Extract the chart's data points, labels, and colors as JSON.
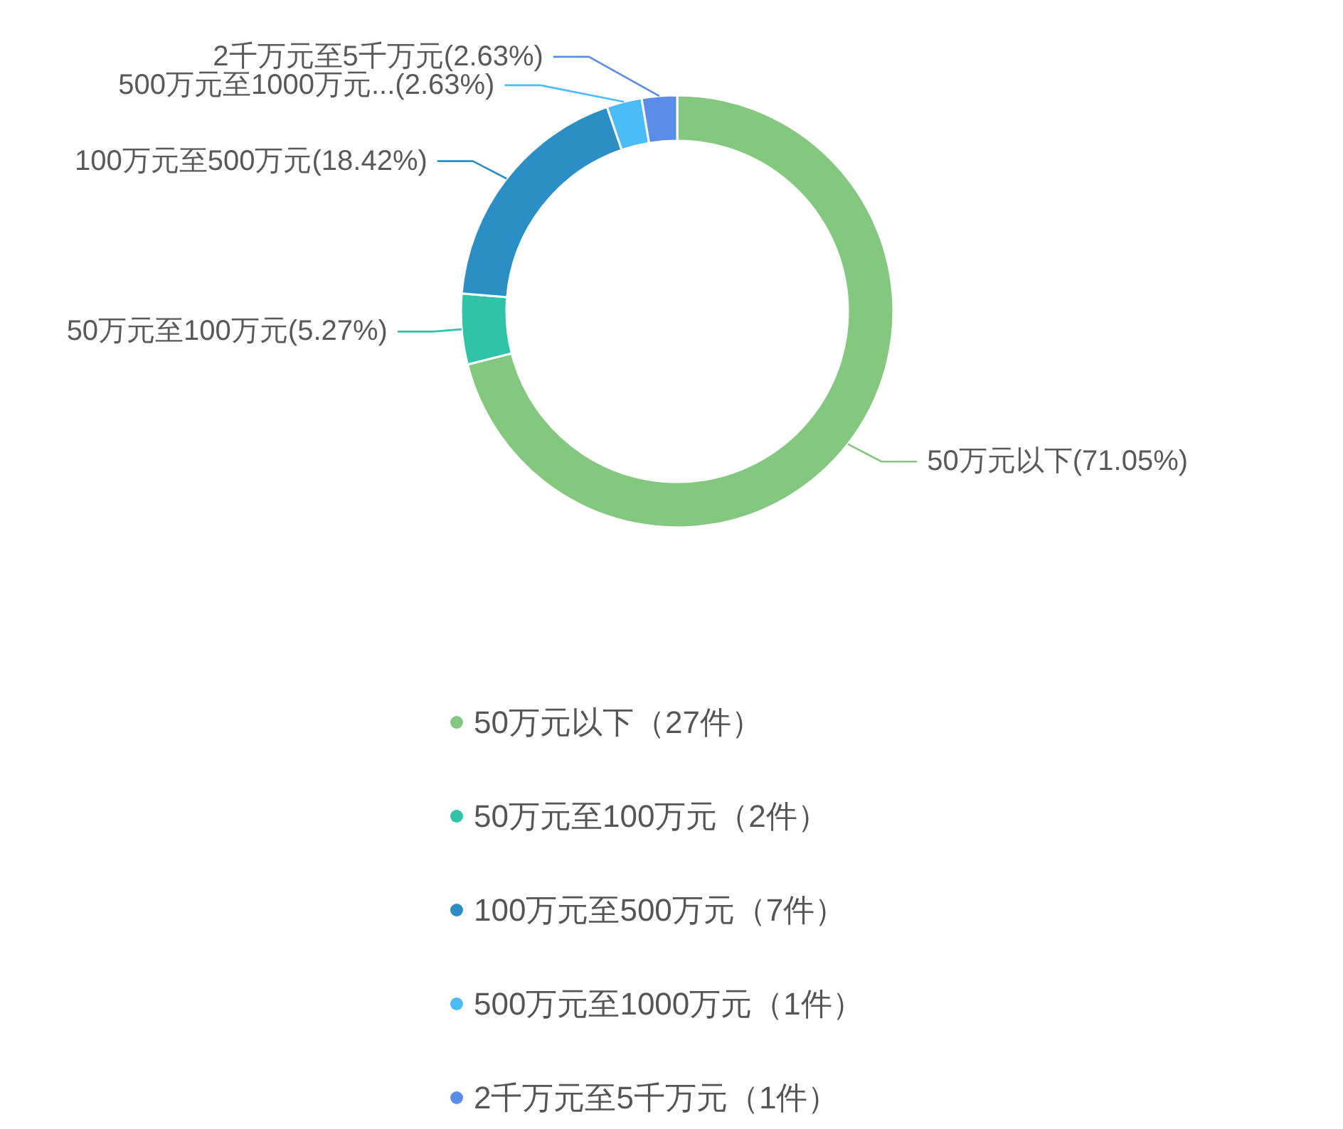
{
  "chart_data": {
    "type": "donut",
    "categories": [
      "50万元以下（27件）",
      "50万元至100万元（2件）",
      "100万元至500万元（7件）",
      "500万元至1000万元（1件）",
      "2千万元至5千万元（1件）"
    ],
    "values": [
      71.05,
      5.27,
      18.42,
      2.63,
      2.63
    ],
    "colors": [
      "#84c77f",
      "#2fc3a7",
      "#2b8fc5",
      "#4bbcf6",
      "#5b8ce8"
    ],
    "value_labels": [
      "50万元以下(71.05%)",
      "50万元至100万元(5.27%)",
      "100万元至500万元(18.42%)",
      "500万元至1000万元...(2.63%)",
      "2千万元至5千万元(2.63%)"
    ],
    "legend": "bottom"
  }
}
